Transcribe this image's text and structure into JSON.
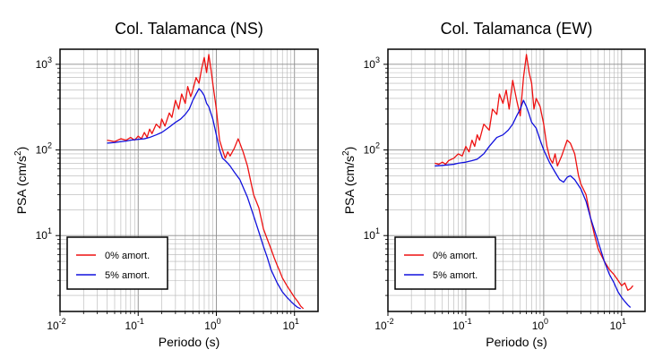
{
  "chart_data": [
    {
      "type": "line",
      "title": "Col. Talamanca (NS)",
      "xlabel": "Periodo (s)",
      "ylabel_base": "PSA (cm/s",
      "ylabel_sup": "2",
      "ylabel_end": ")",
      "xscale": "log",
      "yscale": "log",
      "xlim": [
        0.01,
        20
      ],
      "ylim": [
        1.3,
        1500
      ],
      "grid": true,
      "legend": "bottom-left",
      "xticks": [
        {
          "base": "10",
          "exp": "-2"
        },
        {
          "base": "10",
          "exp": "-1"
        },
        {
          "base": "10",
          "exp": "0"
        },
        {
          "base": "10",
          "exp": "1"
        }
      ],
      "yticks": [
        {
          "base": "10",
          "exp": "1"
        },
        {
          "base": "10",
          "exp": "2"
        },
        {
          "base": "10",
          "exp": "3"
        }
      ],
      "series": [
        {
          "name": "0% amort.",
          "color": "#ee1111",
          "x": [
            0.04,
            0.05,
            0.06,
            0.07,
            0.08,
            0.09,
            0.1,
            0.11,
            0.12,
            0.13,
            0.14,
            0.15,
            0.17,
            0.19,
            0.2,
            0.22,
            0.25,
            0.27,
            0.3,
            0.33,
            0.36,
            0.4,
            0.43,
            0.47,
            0.5,
            0.55,
            0.6,
            0.65,
            0.7,
            0.75,
            0.8,
            0.85,
            0.9,
            1.0,
            1.1,
            1.2,
            1.3,
            1.4,
            1.5,
            1.7,
            1.9,
            2.0,
            2.2,
            2.5,
            2.8,
            3.0,
            3.5,
            4.0,
            4.5,
            5.0,
            5.5,
            6.0,
            6.5,
            7.0,
            8.0,
            9.0,
            10.0,
            11.0,
            12.0,
            13.0
          ],
          "y": [
            130,
            125,
            135,
            130,
            140,
            130,
            145,
            135,
            160,
            140,
            175,
            155,
            200,
            180,
            230,
            190,
            270,
            240,
            380,
            300,
            450,
            350,
            550,
            420,
            500,
            700,
            600,
            900,
            1200,
            800,
            1300,
            900,
            600,
            300,
            130,
            100,
            80,
            95,
            85,
            105,
            135,
            120,
            95,
            65,
            40,
            30,
            21,
            12,
            9,
            7,
            5.5,
            4.5,
            3.8,
            3.2,
            2.6,
            2.2,
            1.9,
            1.7,
            1.5,
            1.4
          ]
        },
        {
          "name": "5% amort.",
          "color": "#1111dd",
          "x": [
            0.04,
            0.05,
            0.06,
            0.07,
            0.08,
            0.1,
            0.12,
            0.14,
            0.17,
            0.2,
            0.22,
            0.25,
            0.3,
            0.35,
            0.4,
            0.45,
            0.5,
            0.55,
            0.6,
            0.65,
            0.7,
            0.75,
            0.8,
            0.9,
            1.0,
            1.1,
            1.2,
            1.3,
            1.4,
            1.5,
            1.7,
            2.0,
            2.5,
            3.0,
            3.5,
            4.0,
            4.5,
            5.0,
            6.0,
            7.0,
            8.0,
            9.0,
            10.0,
            11.0,
            12.0
          ],
          "y": [
            120,
            122,
            125,
            127,
            130,
            133,
            135,
            140,
            150,
            160,
            170,
            185,
            210,
            230,
            260,
            300,
            380,
            450,
            520,
            480,
            430,
            350,
            320,
            230,
            150,
            100,
            80,
            75,
            70,
            65,
            55,
            45,
            28,
            17,
            11,
            7.5,
            5.5,
            4.0,
            2.8,
            2.2,
            1.9,
            1.7,
            1.55,
            1.45,
            1.4
          ]
        }
      ]
    },
    {
      "type": "line",
      "title": "Col. Talamanca (EW)",
      "xlabel": "Periodo (s)",
      "ylabel_base": "PSA (cm/s",
      "ylabel_sup": "2",
      "ylabel_end": ")",
      "xscale": "log",
      "yscale": "log",
      "xlim": [
        0.01,
        20
      ],
      "ylim": [
        1.3,
        1500
      ],
      "grid": true,
      "legend": "bottom-left",
      "xticks": [
        {
          "base": "10",
          "exp": "-2"
        },
        {
          "base": "10",
          "exp": "-1"
        },
        {
          "base": "10",
          "exp": "0"
        },
        {
          "base": "10",
          "exp": "1"
        }
      ],
      "yticks": [
        {
          "base": "10",
          "exp": "1"
        },
        {
          "base": "10",
          "exp": "2"
        },
        {
          "base": "10",
          "exp": "3"
        }
      ],
      "series": [
        {
          "name": "0% amort.",
          "color": "#ee1111",
          "x": [
            0.04,
            0.045,
            0.05,
            0.055,
            0.06,
            0.07,
            0.08,
            0.09,
            0.1,
            0.11,
            0.12,
            0.13,
            0.14,
            0.15,
            0.17,
            0.2,
            0.22,
            0.25,
            0.27,
            0.3,
            0.33,
            0.36,
            0.4,
            0.45,
            0.5,
            0.55,
            0.6,
            0.65,
            0.7,
            0.75,
            0.8,
            0.9,
            1.0,
            1.1,
            1.2,
            1.3,
            1.4,
            1.5,
            1.7,
            2.0,
            2.2,
            2.5,
            2.8,
            3.0,
            3.5,
            4.0,
            4.5,
            5.0,
            6.0,
            7.0,
            8.0,
            9.0,
            10.0,
            11.0,
            12.0,
            13.0,
            14.0
          ],
          "y": [
            70,
            68,
            72,
            68,
            75,
            80,
            90,
            85,
            110,
            95,
            130,
            110,
            150,
            130,
            200,
            170,
            300,
            260,
            450,
            350,
            500,
            300,
            650,
            380,
            250,
            700,
            1300,
            800,
            600,
            300,
            400,
            320,
            200,
            110,
            80,
            70,
            90,
            65,
            85,
            130,
            120,
            90,
            50,
            40,
            30,
            16,
            10,
            7,
            5,
            4,
            3.5,
            3.0,
            2.6,
            2.8,
            2.3,
            2.4,
            2.6
          ]
        },
        {
          "name": "5% amort.",
          "color": "#1111dd",
          "x": [
            0.04,
            0.05,
            0.06,
            0.07,
            0.08,
            0.1,
            0.12,
            0.14,
            0.17,
            0.2,
            0.25,
            0.3,
            0.35,
            0.4,
            0.45,
            0.5,
            0.55,
            0.6,
            0.65,
            0.7,
            0.8,
            0.9,
            1.0,
            1.2,
            1.4,
            1.6,
            1.8,
            2.0,
            2.2,
            2.5,
            3.0,
            3.5,
            4.0,
            5.0,
            6.0,
            7.0,
            8.0,
            9.0,
            10.0,
            11.0,
            12.0,
            13.0
          ],
          "y": [
            65,
            66,
            67,
            68,
            70,
            72,
            75,
            78,
            90,
            110,
            140,
            150,
            170,
            200,
            250,
            300,
            380,
            320,
            260,
            210,
            180,
            130,
            100,
            70,
            55,
            45,
            42,
            48,
            50,
            45,
            35,
            25,
            16,
            8.5,
            5.0,
            3.5,
            2.8,
            2.2,
            1.9,
            1.7,
            1.55,
            1.45
          ]
        }
      ]
    }
  ]
}
